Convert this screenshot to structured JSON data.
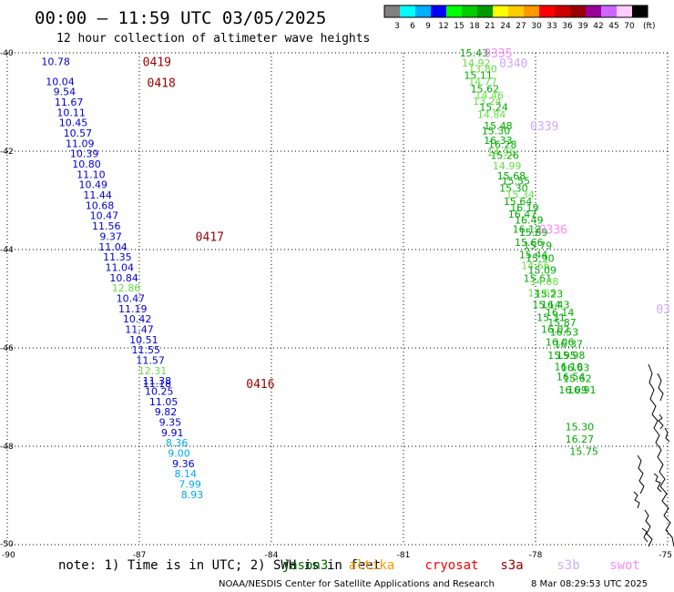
{
  "header": {
    "title": "00:00 – 11:59 UTC 03/05/2025",
    "subtitle": "12 hour collection of altimeter wave heights"
  },
  "colorbar": {
    "unit_label": "(ft)",
    "bins": [
      {
        "label": "3",
        "color": "#808080"
      },
      {
        "label": "6",
        "color": "#00ffff"
      },
      {
        "label": "9",
        "color": "#00b0ff"
      },
      {
        "label": "12",
        "color": "#0000ff"
      },
      {
        "label": "15",
        "color": "#00ff00"
      },
      {
        "label": "18",
        "color": "#00cc00"
      },
      {
        "label": "21",
        "color": "#009900"
      },
      {
        "label": "24",
        "color": "#ffff00"
      },
      {
        "label": "27",
        "color": "#ffcc00"
      },
      {
        "label": "30",
        "color": "#ff9900"
      },
      {
        "label": "33",
        "color": "#ff0000"
      },
      {
        "label": "36",
        "color": "#cc0000"
      },
      {
        "label": "39",
        "color": "#990000"
      },
      {
        "label": "42",
        "color": "#990099"
      },
      {
        "label": "45",
        "color": "#cc66ff"
      },
      {
        "label": "70",
        "color": "#ffccff"
      },
      {
        "label": "",
        "color": "#000000"
      }
    ]
  },
  "note": "note: 1) Time is in UTC; 2) SWH is in feet",
  "satellites": [
    {
      "name": "jason3",
      "color": "#006600"
    },
    {
      "name": "altika",
      "color": "#ff9900"
    },
    {
      "name": "cryosat",
      "color": "#ff0000"
    },
    {
      "name": "s3a",
      "color": "#990000"
    },
    {
      "name": "s3b",
      "color": "#ccaaff"
    },
    {
      "name": "swot",
      "color": "#ff88ff"
    }
  ],
  "credit": {
    "left": "NOAA/NESDIS Center for Satellite Applications and Research",
    "right": "8 Mar 08:29:53 UTC 2025"
  },
  "chart_data": {
    "type": "scatter",
    "title": "00:00 – 11:59 UTC 03/05/2025",
    "subtitle": "12 hour collection of altimeter wave heights",
    "unit": "ft",
    "xlim": [
      -90,
      -75
    ],
    "ylim": [
      -50,
      -40
    ],
    "x_ticks": [
      "-90",
      "-87",
      "-84",
      "-81",
      "-78",
      "-75"
    ],
    "y_ticks": [
      "-40",
      "-42",
      "-44",
      "-46",
      "-48",
      "-50"
    ],
    "grid": true,
    "track_points": [
      {
        "lon": -88.9,
        "lat": -40.18,
        "text": "10.78",
        "color": "#0000cc"
      },
      {
        "lon": -88.8,
        "lat": -40.58,
        "text": "10.04",
        "color": "#0000cc"
      },
      {
        "lon": -88.7,
        "lat": -40.79,
        "text": "9.54",
        "color": "#0000cc"
      },
      {
        "lon": -88.6,
        "lat": -41.0,
        "text": "11.67",
        "color": "#0000cc"
      },
      {
        "lon": -88.55,
        "lat": -41.21,
        "text": "10.11",
        "color": "#0000cc"
      },
      {
        "lon": -88.5,
        "lat": -41.42,
        "text": "10.45",
        "color": "#0000cc"
      },
      {
        "lon": -88.4,
        "lat": -41.63,
        "text": "10.57",
        "color": "#0000cc"
      },
      {
        "lon": -88.35,
        "lat": -41.84,
        "text": "11.09",
        "color": "#0000cc"
      },
      {
        "lon": -88.25,
        "lat": -42.05,
        "text": "10.39",
        "color": "#0000cc"
      },
      {
        "lon": -88.2,
        "lat": -42.26,
        "text": "10.80",
        "color": "#0000cc"
      },
      {
        "lon": -88.1,
        "lat": -42.47,
        "text": "11.10",
        "color": "#0000cc"
      },
      {
        "lon": -88.05,
        "lat": -42.68,
        "text": "10.49",
        "color": "#0000cc"
      },
      {
        "lon": -87.95,
        "lat": -42.89,
        "text": "11.44",
        "color": "#0000cc"
      },
      {
        "lon": -87.9,
        "lat": -43.1,
        "text": "10.68",
        "color": "#0000cc"
      },
      {
        "lon": -87.8,
        "lat": -43.31,
        "text": "10.47",
        "color": "#0000cc"
      },
      {
        "lon": -87.75,
        "lat": -43.52,
        "text": "11.56",
        "color": "#0000cc"
      },
      {
        "lon": -87.65,
        "lat": -43.73,
        "text": "9.37",
        "color": "#0000cc"
      },
      {
        "lon": -87.6,
        "lat": -43.94,
        "text": "11.04",
        "color": "#0000cc"
      },
      {
        "lon": -87.5,
        "lat": -44.15,
        "text": "11.35",
        "color": "#0000cc"
      },
      {
        "lon": -87.45,
        "lat": -44.36,
        "text": "11.04",
        "color": "#0000cc"
      },
      {
        "lon": -87.35,
        "lat": -44.57,
        "text": "10.84",
        "color": "#0000cc"
      },
      {
        "lon": -87.3,
        "lat": -44.78,
        "text": "12.86",
        "color": "#66dd44"
      },
      {
        "lon": -87.2,
        "lat": -44.99,
        "text": "10.47",
        "color": "#0000cc"
      },
      {
        "lon": -87.15,
        "lat": -45.2,
        "text": "11.19",
        "color": "#0000cc"
      },
      {
        "lon": -87.05,
        "lat": -45.41,
        "text": "10.42",
        "color": "#0000cc"
      },
      {
        "lon": -87.0,
        "lat": -45.62,
        "text": "11.47",
        "color": "#0000cc"
      },
      {
        "lon": -86.9,
        "lat": -45.83,
        "text": "10.51",
        "color": "#0000cc"
      },
      {
        "lon": -86.85,
        "lat": -46.04,
        "text": "11.55",
        "color": "#0000cc"
      },
      {
        "lon": -86.75,
        "lat": -46.25,
        "text": "11.57",
        "color": "#0000cc"
      },
      {
        "lon": -86.7,
        "lat": -46.46,
        "text": "12.31",
        "color": "#66dd44"
      },
      {
        "lon": -86.6,
        "lat": -46.67,
        "text": "11.38",
        "color": "#0000cc"
      },
      {
        "lon": -86.6,
        "lat": -46.72,
        "text": "11.18",
        "color": "#0000cc"
      },
      {
        "lon": -86.55,
        "lat": -46.88,
        "text": "10.25",
        "color": "#0000cc"
      },
      {
        "lon": -86.45,
        "lat": -47.09,
        "text": "11.05",
        "color": "#0000cc"
      },
      {
        "lon": -86.4,
        "lat": -47.3,
        "text": "9.82",
        "color": "#0000cc"
      },
      {
        "lon": -86.3,
        "lat": -47.51,
        "text": "9.35",
        "color": "#0000cc"
      },
      {
        "lon": -86.25,
        "lat": -47.72,
        "text": "9.91",
        "color": "#0000cc"
      },
      {
        "lon": -86.15,
        "lat": -47.93,
        "text": "8.36",
        "color": "#00aaee"
      },
      {
        "lon": -86.1,
        "lat": -48.14,
        "text": "9.00",
        "color": "#00aaee"
      },
      {
        "lon": -86.0,
        "lat": -48.35,
        "text": "9.36",
        "color": "#0000cc"
      },
      {
        "lon": -85.95,
        "lat": -48.56,
        "text": "8.14",
        "color": "#00aaee"
      },
      {
        "lon": -85.85,
        "lat": -48.77,
        "text": "7.99",
        "color": "#00aaee"
      },
      {
        "lon": -85.8,
        "lat": -48.98,
        "text": "8.93",
        "color": "#00aaee"
      },
      {
        "lon": -79.4,
        "lat": -40.0,
        "text": "15.43",
        "color": "#00aa00"
      },
      {
        "lon": -79.35,
        "lat": -40.2,
        "text": "14.92",
        "color": "#66dd44"
      },
      {
        "lon": -79.2,
        "lat": -40.32,
        "text": "13.80",
        "color": "#66dd44"
      },
      {
        "lon": -79.3,
        "lat": -40.45,
        "text": "15.11",
        "color": "#00aa00"
      },
      {
        "lon": -79.2,
        "lat": -40.58,
        "text": "14.77",
        "color": "#66dd44"
      },
      {
        "lon": -79.15,
        "lat": -40.73,
        "text": "15.62",
        "color": "#00aa00"
      },
      {
        "lon": -79.05,
        "lat": -40.86,
        "text": "14.46",
        "color": "#66dd44"
      },
      {
        "lon": -79.1,
        "lat": -40.98,
        "text": "13.24",
        "color": "#66dd44"
      },
      {
        "lon": -78.95,
        "lat": -41.1,
        "text": "15.24",
        "color": "#00aa00"
      },
      {
        "lon": -79.0,
        "lat": -41.25,
        "text": "14.84",
        "color": "#66dd44"
      },
      {
        "lon": -78.85,
        "lat": -41.48,
        "text": "15.48",
        "color": "#00aa00"
      },
      {
        "lon": -78.9,
        "lat": -41.58,
        "text": "15.30",
        "color": "#00aa00"
      },
      {
        "lon": -78.85,
        "lat": -41.78,
        "text": "16.33",
        "color": "#00aa00"
      },
      {
        "lon": -78.75,
        "lat": -41.86,
        "text": "16.28",
        "color": "#00aa00"
      },
      {
        "lon": -78.78,
        "lat": -42.02,
        "text": "14.95",
        "color": "#66dd44"
      },
      {
        "lon": -78.7,
        "lat": -42.08,
        "text": "15.26",
        "color": "#00aa00"
      },
      {
        "lon": -78.65,
        "lat": -42.3,
        "text": "14.99",
        "color": "#66dd44"
      },
      {
        "lon": -78.55,
        "lat": -42.5,
        "text": "15.68",
        "color": "#00aa00"
      },
      {
        "lon": -78.45,
        "lat": -42.6,
        "text": "15.55",
        "color": "#00aa00"
      },
      {
        "lon": -78.5,
        "lat": -42.75,
        "text": "15.30",
        "color": "#00aa00"
      },
      {
        "lon": -78.35,
        "lat": -42.88,
        "text": "15.34",
        "color": "#66dd44"
      },
      {
        "lon": -78.4,
        "lat": -43.02,
        "text": "15.64",
        "color": "#00aa00"
      },
      {
        "lon": -78.25,
        "lat": -43.15,
        "text": "16.19",
        "color": "#00aa00"
      },
      {
        "lon": -78.3,
        "lat": -43.28,
        "text": "16.47",
        "color": "#00aa00"
      },
      {
        "lon": -78.15,
        "lat": -43.4,
        "text": "16.49",
        "color": "#00aa00"
      },
      {
        "lon": -78.2,
        "lat": -43.58,
        "text": "16.12",
        "color": "#00aa00"
      },
      {
        "lon": -78.05,
        "lat": -43.65,
        "text": "15.89",
        "color": "#00aa00"
      },
      {
        "lon": -78.15,
        "lat": -43.85,
        "text": "15.66",
        "color": "#00aa00"
      },
      {
        "lon": -77.95,
        "lat": -43.92,
        "text": "15.79",
        "color": "#00aa00"
      },
      {
        "lon": -78.05,
        "lat": -44.1,
        "text": "15.44",
        "color": "#00aa00"
      },
      {
        "lon": -77.9,
        "lat": -44.18,
        "text": "15.90",
        "color": "#00aa00"
      },
      {
        "lon": -78.0,
        "lat": -44.32,
        "text": "14.66",
        "color": "#66dd44"
      },
      {
        "lon": -77.85,
        "lat": -44.42,
        "text": "15.09",
        "color": "#00aa00"
      },
      {
        "lon": -77.95,
        "lat": -44.58,
        "text": "15.61",
        "color": "#00aa00"
      },
      {
        "lon": -77.8,
        "lat": -44.65,
        "text": "14.88",
        "color": "#66dd44"
      },
      {
        "lon": -77.85,
        "lat": -44.88,
        "text": "14.65",
        "color": "#66dd44"
      },
      {
        "lon": -77.7,
        "lat": -44.9,
        "text": "15.23",
        "color": "#00aa00"
      },
      {
        "lon": -77.75,
        "lat": -45.12,
        "text": "15.14",
        "color": "#00aa00"
      },
      {
        "lon": -77.55,
        "lat": -45.12,
        "text": "16.43",
        "color": "#00aa00"
      },
      {
        "lon": -77.45,
        "lat": -45.28,
        "text": "16.14",
        "color": "#00aa00"
      },
      {
        "lon": -77.65,
        "lat": -45.38,
        "text": "15.31",
        "color": "#00aa00"
      },
      {
        "lon": -77.4,
        "lat": -45.48,
        "text": "15.87",
        "color": "#00aa00"
      },
      {
        "lon": -77.55,
        "lat": -45.62,
        "text": "16.02",
        "color": "#00aa00"
      },
      {
        "lon": -77.35,
        "lat": -45.68,
        "text": "16.53",
        "color": "#00aa00"
      },
      {
        "lon": -77.45,
        "lat": -45.88,
        "text": "16.06",
        "color": "#00aa00"
      },
      {
        "lon": -77.25,
        "lat": -45.92,
        "text": "16.37",
        "color": "#00aa00"
      },
      {
        "lon": -77.4,
        "lat": -46.15,
        "text": "15.95",
        "color": "#00aa00"
      },
      {
        "lon": -77.2,
        "lat": -46.15,
        "text": "15.98",
        "color": "#00aa00"
      },
      {
        "lon": -77.25,
        "lat": -46.38,
        "text": "16.10",
        "color": "#00aa00"
      },
      {
        "lon": -77.1,
        "lat": -46.4,
        "text": "16.63",
        "color": "#00aa00"
      },
      {
        "lon": -77.2,
        "lat": -46.58,
        "text": "16.54",
        "color": "#00aa00"
      },
      {
        "lon": -77.05,
        "lat": -46.62,
        "text": "15.62",
        "color": "#00aa00"
      },
      {
        "lon": -77.15,
        "lat": -46.85,
        "text": "16.09",
        "color": "#00aa00"
      },
      {
        "lon": -76.95,
        "lat": -46.85,
        "text": "16.91",
        "color": "#00aa00"
      },
      {
        "lon": -77.0,
        "lat": -47.6,
        "text": "15.30",
        "color": "#00aa00"
      },
      {
        "lon": -77.0,
        "lat": -47.85,
        "text": "16.27",
        "color": "#00aa00"
      },
      {
        "lon": -76.9,
        "lat": -48.1,
        "text": "15.75",
        "color": "#00aa00"
      }
    ],
    "pass_labels": [
      {
        "lon": -86.6,
        "lat": -40.18,
        "text": "0419",
        "color": "#990000"
      },
      {
        "lon": -86.5,
        "lat": -40.6,
        "text": "0418",
        "color": "#990000"
      },
      {
        "lon": -85.4,
        "lat": -43.73,
        "text": "0417",
        "color": "#990000"
      },
      {
        "lon": -84.25,
        "lat": -46.72,
        "text": "0416",
        "color": "#990000"
      },
      {
        "lon": -78.85,
        "lat": -40.0,
        "text": "0335",
        "color": "#ff88ff"
      },
      {
        "lon": -78.5,
        "lat": -40.2,
        "text": "0340",
        "color": "#ccaaff"
      },
      {
        "lon": -77.8,
        "lat": -41.48,
        "text": "0339",
        "color": "#ccaaff"
      },
      {
        "lon": -77.6,
        "lat": -43.58,
        "text": "0336",
        "color": "#ff88ff"
      },
      {
        "lon": -75.1,
        "lat": -45.2,
        "text": "03",
        "color": "#ccaaff"
      }
    ]
  }
}
